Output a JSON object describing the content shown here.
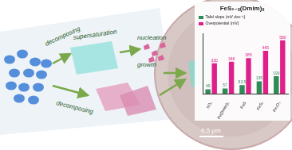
{
  "diagram": {
    "labels": [
      "decomposing",
      "supersaturation",
      "nucleation",
      "growth",
      "decomposing"
    ],
    "scale_bar": "0.5 μm"
  },
  "chart_data": {
    "type": "bar",
    "title": "FeS₁₋ₓ(Dmim)ₓ",
    "categories": [
      "IrO₂",
      "Fe(Dmim)₂",
      "FeS",
      "FeS₂",
      "Fe₂O₃"
    ],
    "series": [
      {
        "name": "Tafel slope (mV dec⁻¹)",
        "color": "#2e8b57",
        "values": [
          49,
          57,
          93.5,
          135,
          190
        ]
      },
      {
        "name": "Overpotential (mV)",
        "color": "#e0208a",
        "values": [
          330,
          348,
          385,
          465,
          580
        ]
      }
    ],
    "ylim": [
      0,
      650
    ],
    "tick_labels": "x",
    "data_labels": true,
    "legend": "top-left",
    "grid": false
  }
}
